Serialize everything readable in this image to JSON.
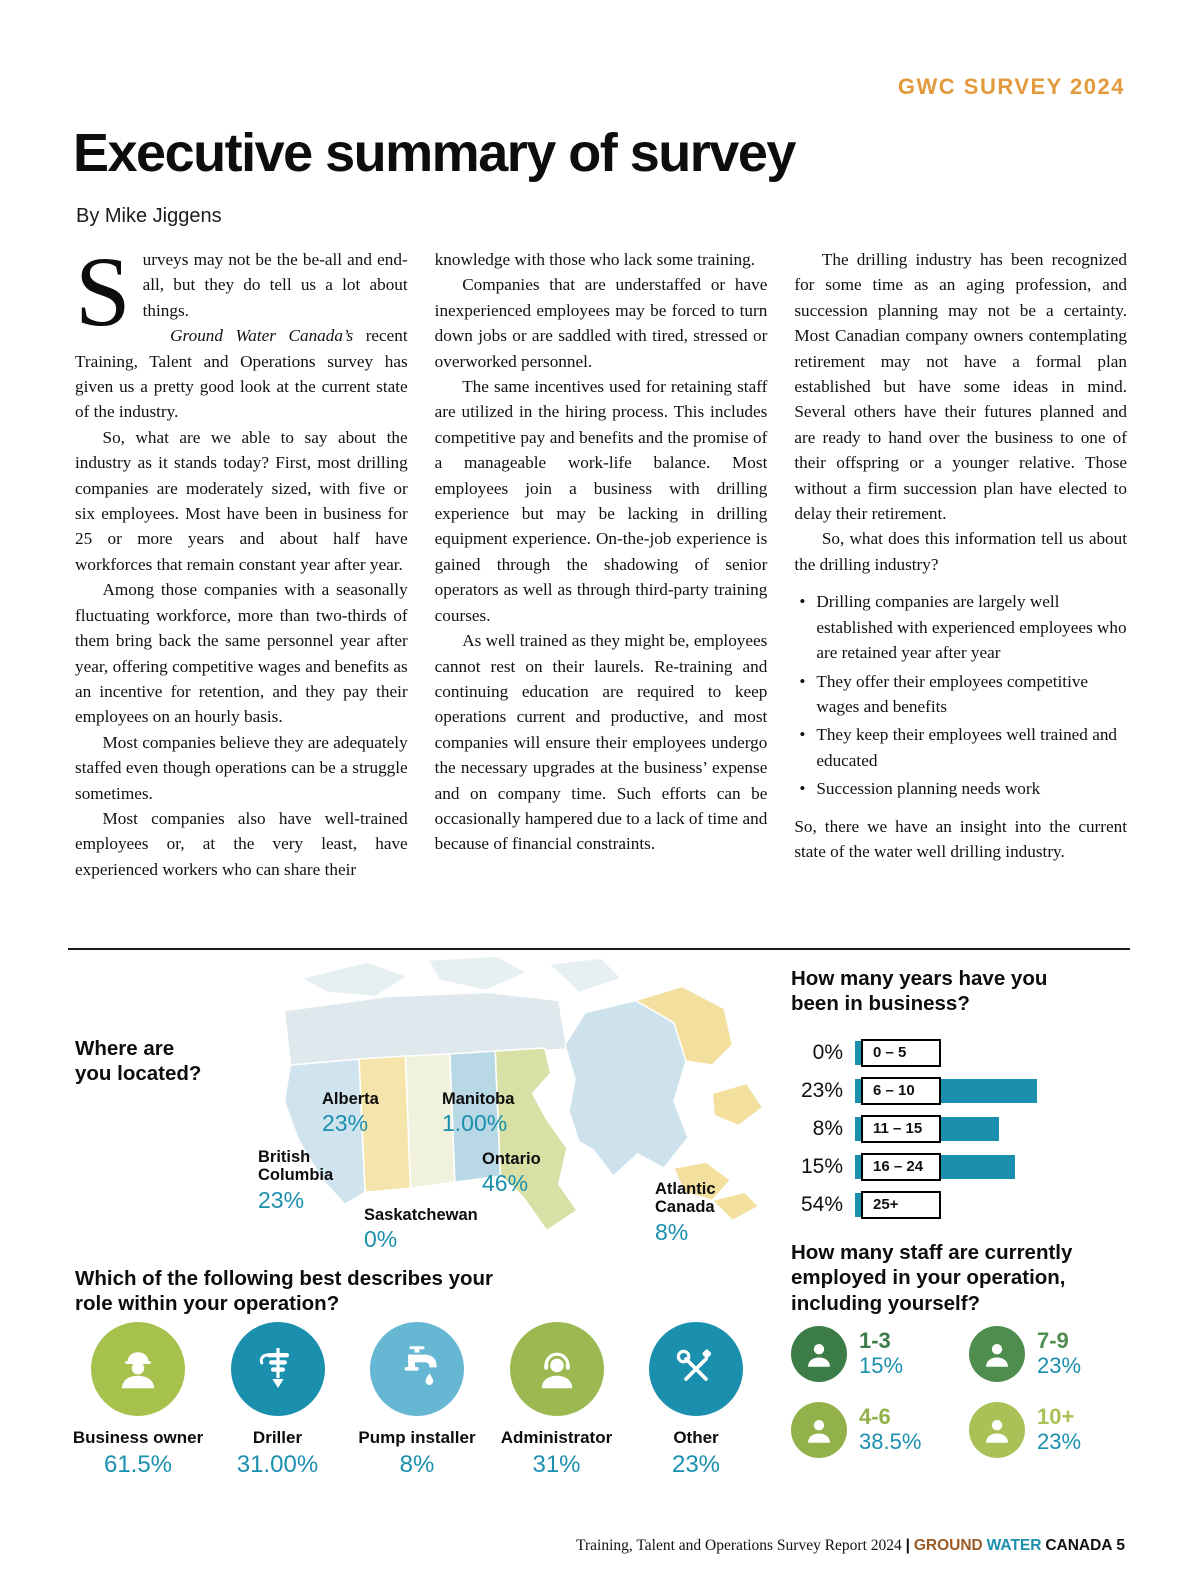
{
  "header": {
    "tag": "GWC SURVEY 2024"
  },
  "title": "Executive summary of survey",
  "byline": "By Mike Jiggens",
  "article": {
    "dropcap": "S",
    "p1": "urveys may not be the be-all and end-all, but they do tell us a lot about things.",
    "p2_italic": "Ground Water Canada’s",
    "p2_rest": " recent Training, Talent and Operations survey has given us a pretty good look at the current state of the industry.",
    "col1_rest": [
      "So, what are we able to say about the industry as it stands today? First, most drilling companies are moderately sized, with five or six employees. Most have been in business for 25 or more years and about half have workforces that remain constant year after year.",
      "Among those companies with a seasonally fluctuating workforce, more than two-thirds of them bring back the same personnel year after year, offering competitive wages and benefits as an incentive for retention, and they pay their employees on an hourly basis.",
      "Most companies believe they are adequately staffed even though operations can be a struggle sometimes.",
      "Most companies also have well-trained employees or, at the very least, have experienced workers who can share their"
    ],
    "col2": [
      "knowledge with those who lack some training.",
      "Companies that are understaffed or have inexperienced employees may be forced to turn down jobs or are saddled with tired, stressed or overworked personnel.",
      "The same incentives used for retaining staff are utilized in the hiring process. This includes competitive pay and benefits and the promise of a manageable work-life balance. Most employees join a business with drilling experience but may be lacking in drilling equipment experience. On-the-job experience is gained through the shadowing of senior operators as well as through third-party training courses.",
      "As well trained as they might be, employees cannot rest on their laurels. Re-training and continuing education are required to keep operations current and productive, and most companies will ensure their employees undergo the necessary upgrades at the business’ expense and on company time. Such efforts can be occasionally hampered due to a lack of time and because of financial constraints."
    ],
    "col3": [
      "The drilling industry has been recognized for some time as an aging profession, and succession planning may not be a certainty. Most Canadian company owners contemplating retirement may not have a formal plan established but have some ideas in mind. Several others have their futures planned and are ready to hand over the business to one of their offspring or a younger relative. Those without a firm succession plan have elected to delay their retirement.",
      "So, what does this information tell us about the drilling industry?"
    ],
    "bullets": [
      "Drilling companies are largely well established with experienced employees who are retained year after year",
      "They offer their employees competitive wages and benefits",
      "They keep their employees well trained and educated",
      "Succession planning needs work"
    ],
    "closing": "So, there we have an insight into the current state of the water well drilling industry."
  },
  "infographic": {
    "map": {
      "question": "Where are you located?",
      "regions": [
        {
          "name": "Alberta",
          "value": "23%"
        },
        {
          "name": "Manitoba",
          "value": "1.00%"
        },
        {
          "name": "British Columbia",
          "value": "23%"
        },
        {
          "name": "Ontario",
          "value": "46%"
        },
        {
          "name": "Saskatchewan",
          "value": "0%"
        },
        {
          "name": "Atlantic Canada",
          "value": "8%"
        }
      ]
    },
    "years": {
      "question": "How many years have you been in business?",
      "rows": [
        {
          "pct": "0%",
          "label": "0 – 5",
          "value": 0
        },
        {
          "pct": "23%",
          "label": "6 – 10",
          "value": 23
        },
        {
          "pct": "8%",
          "label": "11 – 15",
          "value": 8
        },
        {
          "pct": "15%",
          "label": "16 – 24",
          "value": 15
        },
        {
          "pct": "54%",
          "label": "25+",
          "value": 54
        }
      ]
    },
    "roles": {
      "question": "Which of the following best describes your role within your operation?",
      "items": [
        {
          "label": "Business owner",
          "pct": "61.5%",
          "color": "#a6c14c",
          "icon": "worker"
        },
        {
          "label": "Driller",
          "pct": "31.00%",
          "color": "#1a8fae",
          "icon": "drill"
        },
        {
          "label": "Pump installer",
          "pct": "8%",
          "color": "#66b7d4",
          "icon": "faucet"
        },
        {
          "label": "Administrator",
          "pct": "31%",
          "color": "#9cb850",
          "icon": "admin"
        },
        {
          "label": "Other",
          "pct": "23%",
          "color": "#1a8fae",
          "icon": "tools"
        }
      ]
    },
    "staff": {
      "question": "How many staff are currently employed in your operation, including yourself?",
      "items": [
        {
          "label": "1-3",
          "pct": "15%",
          "color": "#3c7c46"
        },
        {
          "label": "7-9",
          "pct": "23%",
          "color": "#4f8d4f"
        },
        {
          "label": "4-6",
          "pct": "38.5%",
          "color": "#93b14b"
        },
        {
          "label": "10+",
          "pct": "23%",
          "color": "#a9c157"
        }
      ]
    }
  },
  "footer": {
    "left": "Training, Talent and Operations Survey Report 2024",
    "sep": "|",
    "brand_ground": "GROUND",
    "brand_water": "WATER",
    "brand_canada": "CANADA",
    "page_num": "5"
  },
  "colors": {
    "teal": "#1a8fae",
    "orange": "#e29a3c",
    "brand_ground": "#9a5b26"
  }
}
